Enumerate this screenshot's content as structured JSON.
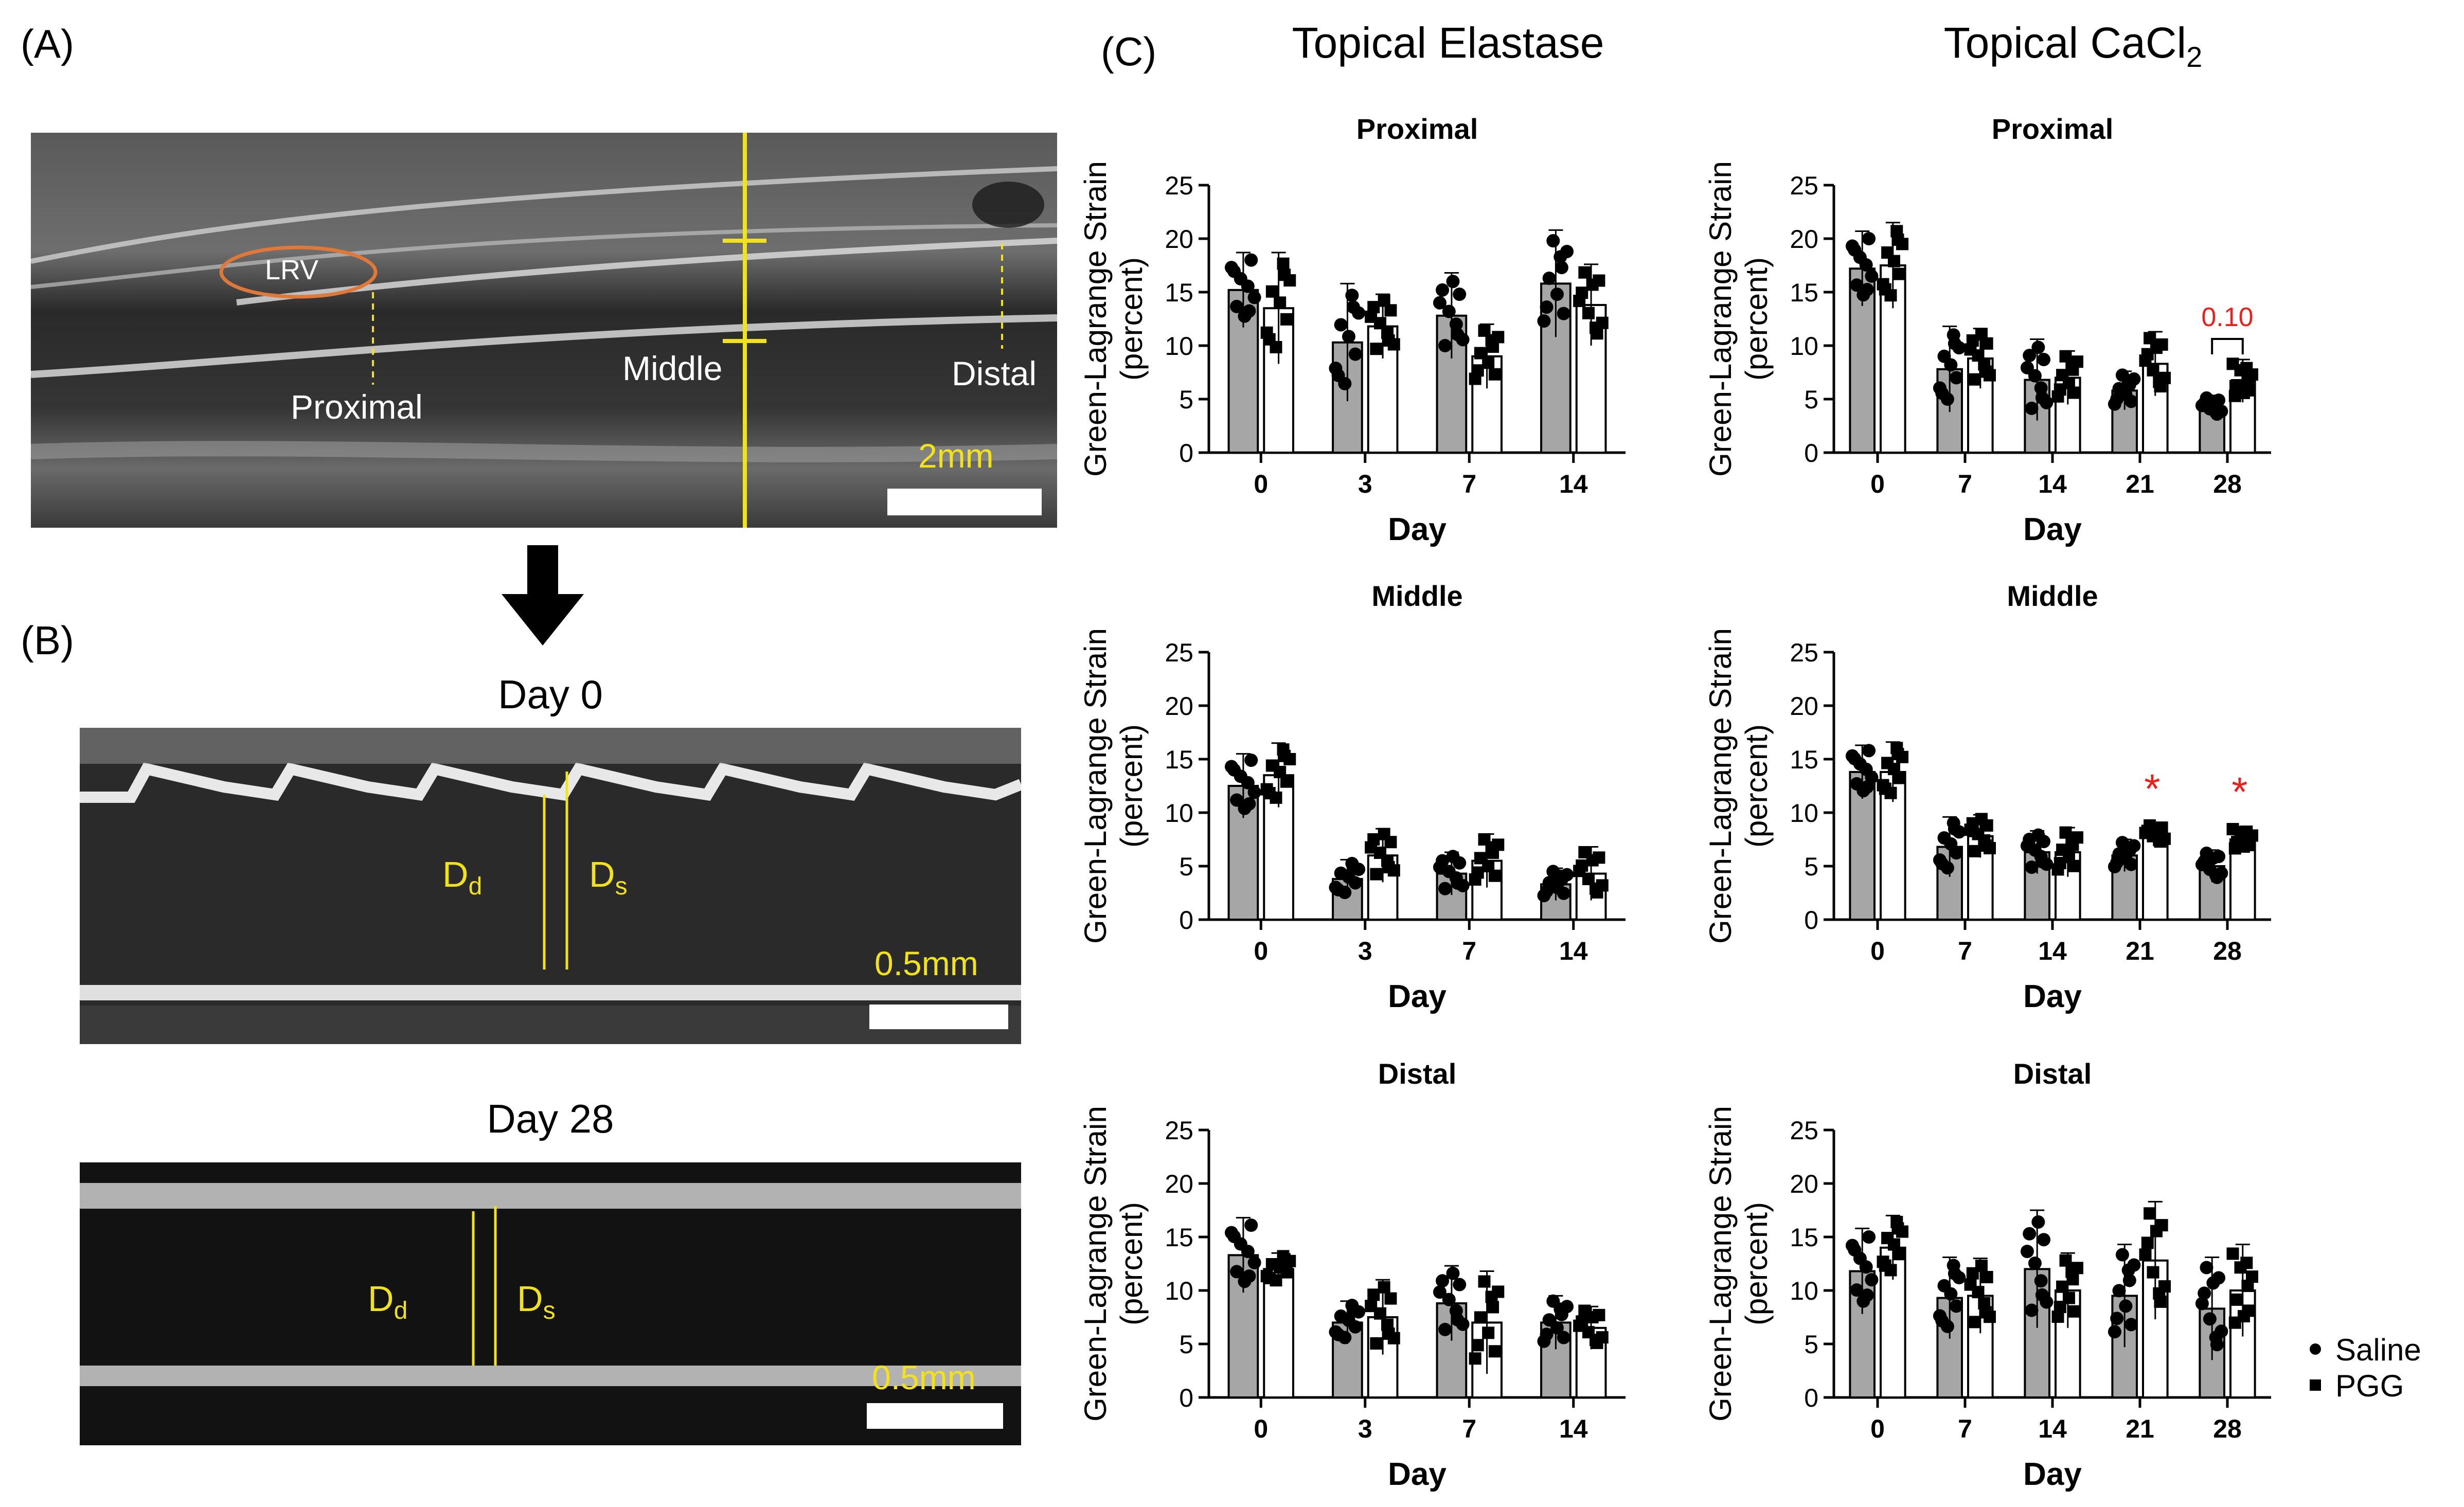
{
  "panels": {
    "a_label": "(A)",
    "b_label": "(B)",
    "c_label": "(C)"
  },
  "ultrasound_a": {
    "lrv_label": "LRV",
    "proximal": "Proximal",
    "middle": "Middle",
    "distal": "Distal",
    "scale": "2mm"
  },
  "mmode": {
    "day0_title": "Day 0",
    "day28_title": "Day 28",
    "dd": "D",
    "dd_sub": "d",
    "ds": "D",
    "ds_sub": "s",
    "scale": "0.5mm"
  },
  "columns": {
    "left_title": "Topical Elastase",
    "right_title_main": "Topical CaCl",
    "right_title_sub": "2"
  },
  "legend": {
    "saline": "Saline",
    "pgg": "PGG"
  },
  "colors": {
    "saline_bar": "#a6a6a6",
    "pgg_bar": "#ffffff",
    "significance": "#e8211d",
    "scale_text": "#f2e21a"
  },
  "chart_data": [
    {
      "type": "bar",
      "group": "Topical Elastase",
      "title": "Proximal",
      "ylabel": "Green-Lagrange Strain (percent)",
      "xlabel": "Day",
      "categories": [
        "0",
        "3",
        "7",
        "14"
      ],
      "ylim": [
        0,
        25
      ],
      "yticks": [
        0,
        5,
        10,
        15,
        20,
        25
      ],
      "series": [
        {
          "name": "Saline",
          "values": [
            15.2,
            10.3,
            12.8,
            15.8
          ],
          "sd": [
            3.5,
            5.5,
            4.0,
            5.0
          ]
        },
        {
          "name": "PGG",
          "values": [
            13.5,
            11.8,
            9.0,
            13.8
          ],
          "sd": [
            5.2,
            3.0,
            3.0,
            3.8
          ]
        }
      ],
      "annotations": []
    },
    {
      "type": "bar",
      "group": "Topical CaCl2",
      "title": "Proximal",
      "ylabel": "Green-Lagrange Strain (percent)",
      "xlabel": "Day",
      "categories": [
        "0",
        "7",
        "14",
        "21",
        "28"
      ],
      "ylim": [
        0,
        25
      ],
      "yticks": [
        0,
        5,
        10,
        15,
        20,
        25
      ],
      "series": [
        {
          "name": "Saline",
          "values": [
            17.2,
            7.8,
            6.8,
            5.8,
            4.3
          ],
          "sd": [
            3.5,
            4.0,
            3.8,
            1.8,
            1.0
          ]
        },
        {
          "name": "PGG",
          "values": [
            17.5,
            8.8,
            7.0,
            8.3,
            6.7
          ],
          "sd": [
            4.0,
            2.8,
            2.5,
            3.0,
            2.0
          ]
        }
      ],
      "annotations": [
        {
          "text": "0.10",
          "category": "28"
        }
      ]
    },
    {
      "type": "bar",
      "group": "Topical Elastase",
      "title": "Middle",
      "ylabel": "Green-Lagrange Strain (percent)",
      "xlabel": "Day",
      "categories": [
        "0",
        "3",
        "7",
        "14"
      ],
      "ylim": [
        0,
        25
      ],
      "yticks": [
        0,
        5,
        10,
        15,
        20,
        25
      ],
      "series": [
        {
          "name": "Saline",
          "values": [
            12.5,
            3.8,
            4.3,
            3.3
          ],
          "sd": [
            3.0,
            1.8,
            2.0,
            1.5
          ]
        },
        {
          "name": "PGG",
          "values": [
            13.5,
            6.0,
            5.5,
            4.3
          ],
          "sd": [
            3.0,
            2.5,
            2.5,
            2.5
          ]
        }
      ],
      "annotations": []
    },
    {
      "type": "bar",
      "group": "Topical CaCl2",
      "title": "Middle",
      "ylabel": "Green-Lagrange Strain (percent)",
      "xlabel": "Day",
      "categories": [
        "0",
        "7",
        "14",
        "21",
        "28"
      ],
      "ylim": [
        0,
        25
      ],
      "yticks": [
        0,
        5,
        10,
        15,
        20,
        25
      ],
      "series": [
        {
          "name": "Saline",
          "values": [
            13.8,
            6.8,
            6.3,
            6.0,
            5.0
          ],
          "sd": [
            2.5,
            2.8,
            2.0,
            1.5,
            1.5
          ]
        },
        {
          "name": "PGG",
          "values": [
            13.8,
            7.8,
            6.3,
            8.0,
            7.5
          ],
          "sd": [
            2.8,
            2.0,
            2.3,
            1.0,
            1.2
          ]
        }
      ],
      "annotations": [
        {
          "text": "*",
          "category": "21"
        },
        {
          "text": "*",
          "category": "28"
        }
      ]
    },
    {
      "type": "bar",
      "group": "Topical Elastase",
      "title": "Distal",
      "ylabel": "Green-Lagrange Strain (percent)",
      "xlabel": "Day",
      "categories": [
        "0",
        "3",
        "7",
        "14"
      ],
      "ylim": [
        0,
        25
      ],
      "yticks": [
        0,
        5,
        10,
        15,
        20,
        25
      ],
      "series": [
        {
          "name": "Saline",
          "values": [
            13.3,
            7.0,
            8.8,
            7.0
          ],
          "sd": [
            3.5,
            2.0,
            3.5,
            2.5
          ]
        },
        {
          "name": "PGG",
          "values": [
            12.0,
            7.5,
            7.0,
            6.5
          ],
          "sd": [
            1.5,
            3.5,
            4.8,
            2.0
          ]
        }
      ],
      "annotations": []
    },
    {
      "type": "bar",
      "group": "Topical CaCl2",
      "title": "Distal",
      "ylabel": "Green-Lagrange Strain (percent)",
      "xlabel": "Day",
      "categories": [
        "0",
        "7",
        "14",
        "21",
        "28"
      ],
      "ylim": [
        0,
        25
      ],
      "yticks": [
        0,
        5,
        10,
        15,
        20,
        25
      ],
      "series": [
        {
          "name": "Saline",
          "values": [
            11.8,
            9.3,
            12.0,
            9.5,
            8.3
          ],
          "sd": [
            4.0,
            3.8,
            5.5,
            4.8,
            4.8
          ]
        },
        {
          "name": "PGG",
          "values": [
            14.0,
            9.5,
            10.0,
            12.8,
            10.0
          ],
          "sd": [
            3.0,
            3.5,
            3.5,
            5.5,
            4.3
          ]
        }
      ],
      "annotations": []
    }
  ]
}
